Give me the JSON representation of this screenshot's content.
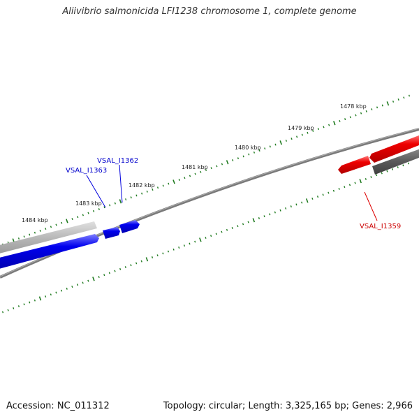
{
  "title": "Aliivibrio salmonicida LFI1238 chromosome 1, complete genome",
  "accession_text": "Accession: NC_011312",
  "summary_text": "Topology: circular; Length: 3,325,165 bp; Genes: 2,966",
  "colors": {
    "backbone": "#7d7d7d",
    "tick": "#1e7a1e",
    "forward_gene": "#0000ee",
    "forward_gene_highlight": "#8080ff",
    "reverse_gene": "#ee0000",
    "reverse_gene_highlight": "#ff8080",
    "other_gene_light": "#b8b8b8",
    "other_gene_dark": "#5a5a5a"
  },
  "scale_labels": [
    {
      "kbp": 1478,
      "text": "1478 kbp"
    },
    {
      "kbp": 1479,
      "text": "1479 kbp"
    },
    {
      "kbp": 1480,
      "text": "1480 kbp"
    },
    {
      "kbp": 1481,
      "text": "1481 kbp"
    },
    {
      "kbp": 1482,
      "text": "1482 kbp"
    },
    {
      "kbp": 1483,
      "text": "1483 kbp"
    },
    {
      "kbp": 1484,
      "text": "1484 kbp"
    }
  ],
  "gene_labels": [
    {
      "id": "VSAL_I1363",
      "text": "VSAL_I1363",
      "strand": "forward"
    },
    {
      "id": "VSAL_I1362",
      "text": "VSAL_I1362",
      "strand": "forward"
    },
    {
      "id": "VSAL_I1359",
      "text": "VSAL_I1359",
      "strand": "reverse"
    }
  ]
}
